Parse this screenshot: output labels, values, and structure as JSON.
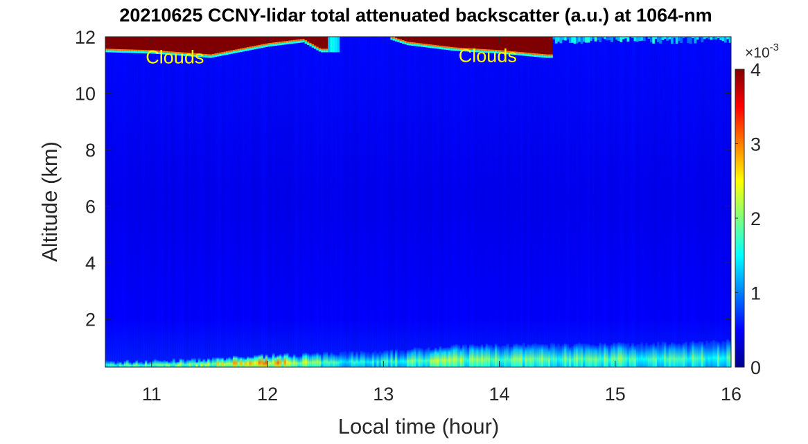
{
  "chart_data": {
    "type": "heatmap",
    "title": "20210625 CCNY-lidar total attenuated backscatter (a.u.) at 1064-nm",
    "xlabel": "Local time (hour)",
    "ylabel": "Altitude (km)",
    "xlim": [
      10.6,
      16
    ],
    "ylim": [
      0.3,
      12
    ],
    "xticks": [
      11,
      12,
      13,
      14,
      15,
      16
    ],
    "yticks": [
      2,
      4,
      6,
      8,
      10,
      12
    ],
    "colorbar": {
      "colormap": "jet",
      "clim": [
        0,
        4
      ],
      "ticks": [
        0,
        1,
        2,
        3,
        4
      ],
      "exponent_label": "×10",
      "exponent": "-3"
    },
    "background_value": 0.45,
    "cloud_base_km": {
      "time": [
        10.6,
        11.0,
        11.5,
        12.0,
        12.3,
        12.45,
        12.5,
        13.05,
        13.2,
        13.6,
        14.0,
        14.4,
        14.45,
        16.0
      ],
      "altitude": [
        11.5,
        11.45,
        11.3,
        11.7,
        11.85,
        11.5,
        null,
        11.95,
        11.75,
        11.55,
        11.45,
        11.3,
        null,
        null
      ]
    },
    "boundary_layer_top_km": {
      "time": [
        10.6,
        11.0,
        11.5,
        12.0,
        12.5,
        13.0,
        13.5,
        14.0,
        14.5,
        15.0,
        15.5,
        16.0
      ],
      "altitude": [
        0.45,
        0.5,
        0.55,
        0.7,
        0.75,
        0.8,
        1.0,
        1.05,
        1.05,
        1.1,
        1.1,
        1.2
      ],
      "peak_value": [
        1.8,
        2.0,
        2.4,
        3.0,
        1.8,
        1.7,
        2.2,
        2.1,
        1.9,
        2.0,
        1.9,
        1.8
      ]
    },
    "annotations": [
      {
        "text": "Clouds",
        "time": 11.2,
        "altitude": 11.05,
        "color": "#ffff00"
      },
      {
        "text": "Clouds",
        "time": 13.9,
        "altitude": 11.1,
        "color": "#ffff00"
      }
    ]
  }
}
